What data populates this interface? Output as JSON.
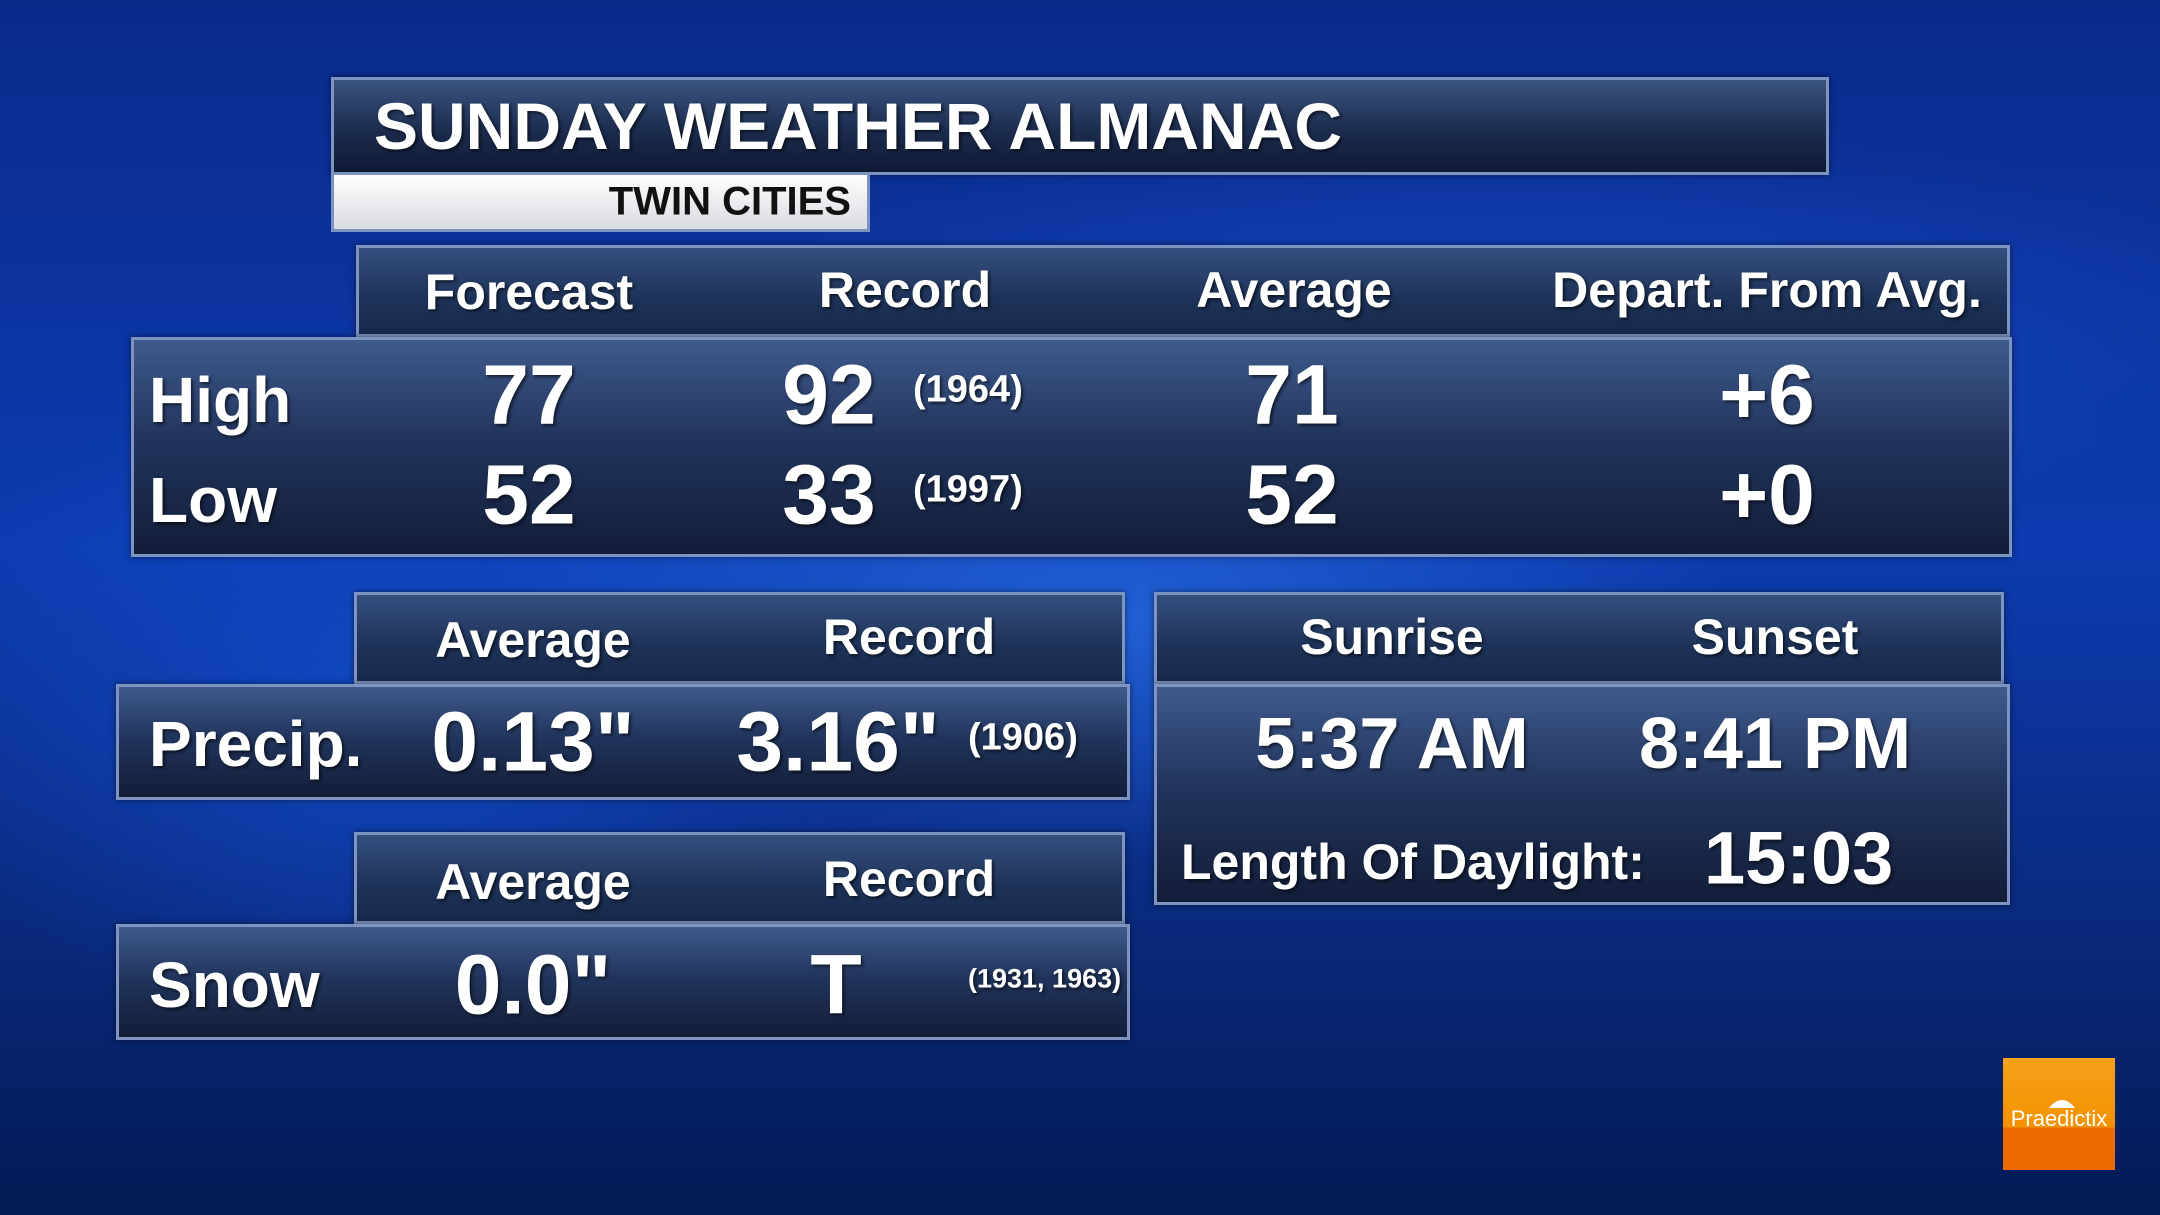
{
  "title": "SUNDAY WEATHER ALMANAC",
  "location": "TWIN CITIES",
  "temps": {
    "headers": [
      "Forecast",
      "Record",
      "Average",
      "Depart. From Avg."
    ],
    "rows": [
      {
        "label": "High",
        "forecast": "77",
        "record": "92",
        "record_year": "(1964)",
        "average": "71",
        "departure": "+6"
      },
      {
        "label": "Low",
        "forecast": "52",
        "record": "33",
        "record_year": "(1997)",
        "average": "52",
        "departure": "+0"
      }
    ]
  },
  "precip": {
    "headers": [
      "Average",
      "Record"
    ],
    "label": "Precip.",
    "average": "0.13\"",
    "record": "3.16\"",
    "record_year": "(1906)"
  },
  "snow": {
    "headers": [
      "Average",
      "Record"
    ],
    "label": "Snow",
    "average": "0.0\"",
    "record": "T",
    "record_year": "(1931, 1963)"
  },
  "sun": {
    "headers": [
      "Sunrise",
      "Sunset"
    ],
    "sunrise": "5:37 AM",
    "sunset": "8:41 PM",
    "daylight_label": "Length Of Daylight:",
    "daylight": "15:03"
  },
  "logo": {
    "text": "Praedictix",
    "color": "#f39200"
  }
}
